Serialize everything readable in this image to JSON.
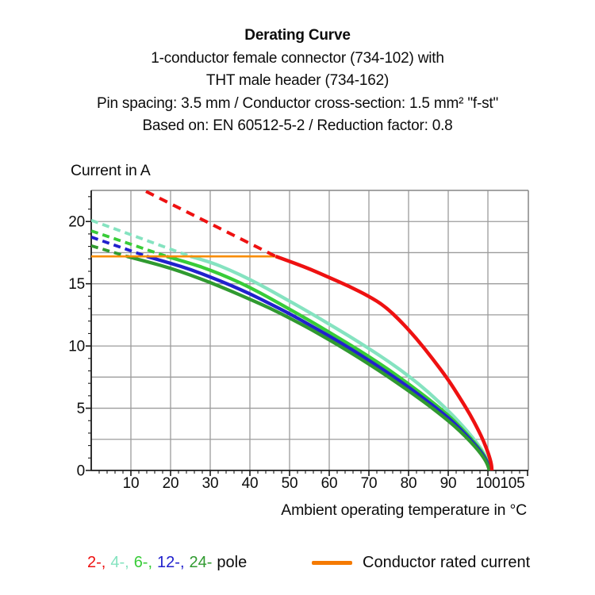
{
  "header": {
    "title": "Derating Curve",
    "subtitle_lines": [
      "1-conductor female connector (734-102) with",
      "THT male header (734-162)",
      "Pin spacing: 3.5 mm / Conductor cross-section: 1.5 mm² \"f-st\"",
      "Based on: EN 60512-5-2 / Reduction factor: 0.8"
    ]
  },
  "axes": {
    "y_label": "Current in A",
    "x_label": "Ambient operating temperature in °C"
  },
  "legend": {
    "pole_items": [
      {
        "label": "2-,",
        "color": "#ee1111"
      },
      {
        "label": "4-,",
        "color": "#85e3c0"
      },
      {
        "label": "6-,",
        "color": "#38cc38"
      },
      {
        "label": "12-,",
        "color": "#2121cd"
      },
      {
        "label": "24-",
        "color": "#309a30"
      }
    ],
    "pole_suffix": "pole",
    "rated_current_label": "Conductor rated current",
    "rated_current_color": "#f57a00"
  },
  "chart_data": {
    "type": "line",
    "title": "Derating Curve",
    "xlabel": "Ambient operating temperature in °C",
    "ylabel": "Current in A",
    "xlim": [
      0,
      110.2
    ],
    "ylim": [
      0,
      22.5
    ],
    "x_gridlines": [
      10,
      20,
      30,
      40,
      50,
      60,
      70,
      80,
      90,
      100
    ],
    "y_gridlines": [
      2.5,
      5,
      7.5,
      10,
      12.5,
      15,
      17.5,
      20,
      22.5
    ],
    "x_tick_labels": [
      10,
      20,
      30,
      40,
      50,
      60,
      70,
      80,
      90,
      100,
      105
    ],
    "y_tick_labels": [
      0,
      5,
      10,
      15,
      20
    ],
    "x_minor_step": 2,
    "y_minor_step": 1,
    "grid_color": "#9c9c9c",
    "border_color": "#8e8e8e",
    "axis_color": "#1a1a1a",
    "legend_position": "bottom",
    "rated_current": {
      "value": 17.2,
      "x_start": 0,
      "x_end": 46.5,
      "color": "#f88c00",
      "label": "Conductor rated current"
    },
    "series": [
      {
        "name": "4-pole",
        "color": "#85e3c0",
        "dashed": [
          [
            0,
            20.1
          ],
          [
            25,
            17.2
          ]
        ],
        "solid": [
          [
            25,
            17.2
          ],
          [
            30,
            16.75
          ],
          [
            35,
            16.1
          ],
          [
            40,
            15.35
          ],
          [
            45,
            14.5
          ],
          [
            50,
            13.6
          ],
          [
            55,
            12.7
          ],
          [
            60,
            11.75
          ],
          [
            65,
            10.8
          ],
          [
            70,
            9.8
          ],
          [
            75,
            8.75
          ],
          [
            80,
            7.6
          ],
          [
            85,
            6.3
          ],
          [
            90,
            4.8
          ],
          [
            93,
            3.8
          ],
          [
            95.5,
            2.9
          ],
          [
            97.5,
            2.1
          ],
          [
            99,
            1.4
          ],
          [
            100,
            0.7
          ],
          [
            100.5,
            0.3
          ],
          [
            100.6,
            0
          ]
        ]
      },
      {
        "name": "6-pole",
        "color": "#38cc38",
        "dashed": [
          [
            0,
            19.25
          ],
          [
            19,
            17.2
          ]
        ],
        "solid": [
          [
            19,
            17.2
          ],
          [
            25,
            16.65
          ],
          [
            30,
            16.1
          ],
          [
            35,
            15.45
          ],
          [
            40,
            14.7
          ],
          [
            45,
            13.85
          ],
          [
            50,
            12.95
          ],
          [
            55,
            12.05
          ],
          [
            60,
            11.1
          ],
          [
            65,
            10.15
          ],
          [
            70,
            9.15
          ],
          [
            75,
            8.1
          ],
          [
            80,
            6.95
          ],
          [
            85,
            5.75
          ],
          [
            90,
            4.45
          ],
          [
            93,
            3.5
          ],
          [
            95.5,
            2.65
          ],
          [
            97.5,
            1.9
          ],
          [
            99,
            1.25
          ],
          [
            100,
            0.6
          ],
          [
            100.4,
            0.25
          ],
          [
            100.5,
            0
          ]
        ]
      },
      {
        "name": "12-pole",
        "color": "#2121cd",
        "dashed": [
          [
            0,
            18.75
          ],
          [
            14,
            17.2
          ]
        ],
        "solid": [
          [
            14,
            17.2
          ],
          [
            20,
            16.65
          ],
          [
            25,
            16.15
          ],
          [
            30,
            15.55
          ],
          [
            35,
            14.9
          ],
          [
            40,
            14.2
          ],
          [
            45,
            13.4
          ],
          [
            50,
            12.6
          ],
          [
            55,
            11.7
          ],
          [
            60,
            10.8
          ],
          [
            65,
            9.85
          ],
          [
            70,
            8.85
          ],
          [
            75,
            7.8
          ],
          [
            80,
            6.7
          ],
          [
            85,
            5.5
          ],
          [
            90,
            4.25
          ],
          [
            93,
            3.35
          ],
          [
            95.5,
            2.5
          ],
          [
            97.5,
            1.8
          ],
          [
            99,
            1.15
          ],
          [
            100,
            0.55
          ],
          [
            100.3,
            0.2
          ],
          [
            100.4,
            0
          ]
        ]
      },
      {
        "name": "24-pole",
        "color": "#309a30",
        "dashed": [
          [
            0,
            18.05
          ],
          [
            9,
            17.2
          ]
        ],
        "solid": [
          [
            9,
            17.2
          ],
          [
            15,
            16.7
          ],
          [
            20,
            16.25
          ],
          [
            25,
            15.7
          ],
          [
            30,
            15.1
          ],
          [
            35,
            14.45
          ],
          [
            40,
            13.75
          ],
          [
            45,
            13.05
          ],
          [
            50,
            12.25
          ],
          [
            55,
            11.4
          ],
          [
            60,
            10.5
          ],
          [
            65,
            9.55
          ],
          [
            70,
            8.55
          ],
          [
            75,
            7.5
          ],
          [
            80,
            6.4
          ],
          [
            85,
            5.25
          ],
          [
            90,
            4.0
          ],
          [
            93,
            3.15
          ],
          [
            95.5,
            2.35
          ],
          [
            97.5,
            1.65
          ],
          [
            99,
            1.0
          ],
          [
            99.8,
            0.55
          ],
          [
            100.2,
            0.2
          ],
          [
            100.3,
            0
          ]
        ]
      },
      {
        "name": "2-pole",
        "color": "#ee1111",
        "dash_pattern": "11 8",
        "dashed_width": 4.0,
        "solid_width": 4.5,
        "dashed": [
          [
            13.8,
            22.42
          ],
          [
            46.5,
            17.2
          ]
        ],
        "solid": [
          [
            46.5,
            17.2
          ],
          [
            50,
            16.8
          ],
          [
            55,
            16.2
          ],
          [
            60,
            15.5
          ],
          [
            65,
            14.8
          ],
          [
            70,
            14.0
          ],
          [
            74,
            13.2
          ],
          [
            78,
            12.0
          ],
          [
            82,
            10.6
          ],
          [
            86,
            9.0
          ],
          [
            90,
            7.3
          ],
          [
            93,
            5.8
          ],
          [
            95.5,
            4.5
          ],
          [
            97.5,
            3.3
          ],
          [
            99,
            2.3
          ],
          [
            100.2,
            1.3
          ],
          [
            100.9,
            0.5
          ],
          [
            101,
            0
          ]
        ]
      }
    ]
  }
}
